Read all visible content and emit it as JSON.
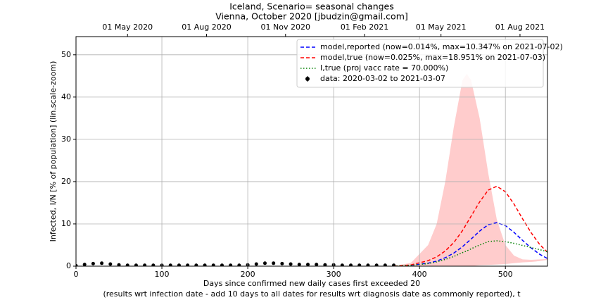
{
  "chart_data": {
    "type": "line",
    "title": "Iceland, Scenario= seasonal changes",
    "subtitle": "Vienna, October 2020 [jbudzin@gmail.com]",
    "xlabel": "Days since confirmed new daily cases first exceeded 20",
    "xlabel2": "(results wrt infection date - add 10 days to all dates for results wrt diagnosis date as commonly reported), t",
    "ylabel": "Infected, I/N [% of population] (lin.scale-zoom)",
    "xlim": [
      0,
      549
    ],
    "ylim": [
      0,
      54.3
    ],
    "xticks": [
      0,
      100,
      200,
      300,
      400,
      500
    ],
    "yticks": [
      0,
      10,
      20,
      30,
      40,
      50
    ],
    "x2ticks": [
      {
        "value": 60,
        "label": "01 May 2020"
      },
      {
        "value": 152,
        "label": "01 Aug 2020"
      },
      {
        "value": 244,
        "label": "01 Nov 2020"
      },
      {
        "value": 336,
        "label": "01 Feb 2021"
      },
      {
        "value": 425,
        "label": "01 May 2021"
      },
      {
        "value": 517,
        "label": "01 Aug 2021"
      }
    ],
    "grid": true,
    "legend": "upper right",
    "band": {
      "color": "#ffcccc",
      "x": [
        370,
        390,
        410,
        420,
        430,
        440,
        450,
        455,
        460,
        470,
        480,
        490,
        500,
        510,
        520,
        530,
        540,
        549
      ],
      "upper": [
        0,
        0.8,
        5,
        10,
        20,
        33,
        44,
        45.5,
        44,
        35,
        22,
        11,
        5,
        2.5,
        1.6,
        1.5,
        1.6,
        1.7
      ],
      "lower": [
        0,
        0,
        0,
        0,
        0,
        0,
        0,
        0,
        0,
        0.2,
        0.3,
        0.4,
        0.5,
        0.7,
        0.9,
        1.0,
        1.2,
        1.5
      ]
    },
    "series": [
      {
        "name": "model,reported (now=0.014%, max=10.347% on 2021-07-02)",
        "color": "#0000ff",
        "linestyle": "dashed",
        "x": [
          370,
          390,
          410,
          420,
          430,
          440,
          450,
          455,
          460,
          470,
          480,
          490,
          500,
          510,
          520,
          530,
          540,
          549
        ],
        "values": [
          0,
          0.2,
          0.7,
          1.2,
          2.0,
          3.1,
          4.6,
          5.5,
          6.4,
          8.3,
          9.8,
          10.3,
          9.6,
          8.0,
          6.1,
          4.3,
          2.8,
          1.8
        ]
      },
      {
        "name": "model,true (now=0.025%, max=18.951% on 2021-07-03)",
        "color": "#ff0000",
        "linestyle": "dashed",
        "x": [
          370,
          390,
          410,
          420,
          430,
          440,
          450,
          455,
          460,
          470,
          480,
          490,
          500,
          510,
          520,
          530,
          540,
          549
        ],
        "values": [
          0,
          0.3,
          1.3,
          2.2,
          3.6,
          5.6,
          8.4,
          10.1,
          11.8,
          15.2,
          18.0,
          18.9,
          17.6,
          14.7,
          11.2,
          7.9,
          5.1,
          3.3
        ]
      },
      {
        "name": "I,true (proj vacc rate = 70.000%)",
        "color": "#008000",
        "linestyle": "dotted",
        "x": [
          370,
          390,
          410,
          420,
          430,
          440,
          450,
          455,
          460,
          470,
          480,
          490,
          500,
          510,
          520,
          530,
          540,
          549
        ],
        "values": [
          0,
          0.2,
          0.6,
          1.0,
          1.6,
          2.3,
          3.2,
          3.6,
          4.1,
          5.0,
          5.8,
          6.0,
          5.8,
          5.4,
          4.9,
          4.4,
          3.9,
          3.4
        ]
      },
      {
        "name": "data: 2020-03-02 to 2021-03-07",
        "color": "#000000",
        "linestyle": "points",
        "x": [
          0,
          10,
          20,
          30,
          40,
          50,
          60,
          70,
          80,
          90,
          100,
          110,
          120,
          130,
          140,
          150,
          160,
          170,
          180,
          190,
          200,
          210,
          220,
          230,
          240,
          250,
          260,
          270,
          280,
          290,
          300,
          310,
          320,
          330,
          340,
          350,
          360,
          370
        ],
        "values": [
          0.1,
          0.4,
          0.6,
          0.7,
          0.5,
          0.3,
          0.2,
          0.2,
          0.2,
          0.2,
          0.2,
          0.2,
          0.2,
          0.2,
          0.2,
          0.2,
          0.2,
          0.2,
          0.2,
          0.2,
          0.3,
          0.5,
          0.7,
          0.7,
          0.6,
          0.5,
          0.4,
          0.4,
          0.4,
          0.3,
          0.3,
          0.2,
          0.2,
          0.2,
          0.2,
          0.2,
          0.2,
          0.2
        ]
      }
    ]
  }
}
